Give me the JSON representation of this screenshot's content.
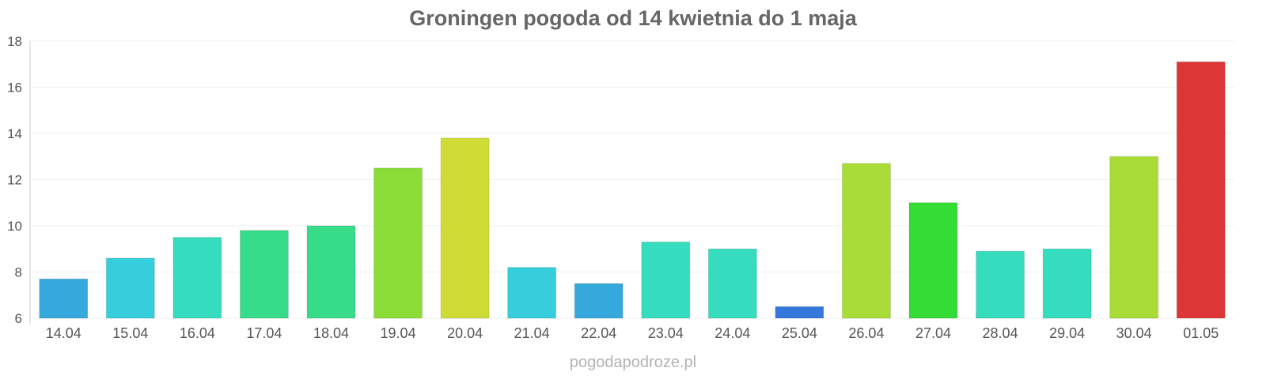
{
  "chart_data": {
    "type": "bar",
    "title": "Groningen pogoda od 14 kwietnia do 1 maja",
    "categories": [
      "14.04",
      "15.04",
      "16.04",
      "17.04",
      "18.04",
      "19.04",
      "20.04",
      "21.04",
      "22.04",
      "23.04",
      "24.04",
      "25.04",
      "26.04",
      "27.04",
      "28.04",
      "29.04",
      "30.04",
      "01.05"
    ],
    "values": [
      7.7,
      8.6,
      9.5,
      9.8,
      10.0,
      12.5,
      13.8,
      8.2,
      7.5,
      9.3,
      9.0,
      6.5,
      12.7,
      11.0,
      8.9,
      9.0,
      13.0,
      17.1
    ],
    "colors": [
      "#36a9dc",
      "#36cedd",
      "#35dcbd",
      "#36dc8a",
      "#36dc8a",
      "#8bdc36",
      "#cfdc36",
      "#36cedd",
      "#36a9dc",
      "#35dcbd",
      "#35dcbd",
      "#3677dc",
      "#a9dc36",
      "#34dc36",
      "#35dcbd",
      "#35dcbd",
      "#a9dc36",
      "#dc3636"
    ],
    "ylim": [
      6,
      18
    ],
    "yticks": [
      6,
      8,
      10,
      12,
      14,
      16,
      18
    ],
    "xlabel": "",
    "ylabel": "",
    "grid": true,
    "legend": "none"
  },
  "watermark": "pogodapodroze.pl"
}
